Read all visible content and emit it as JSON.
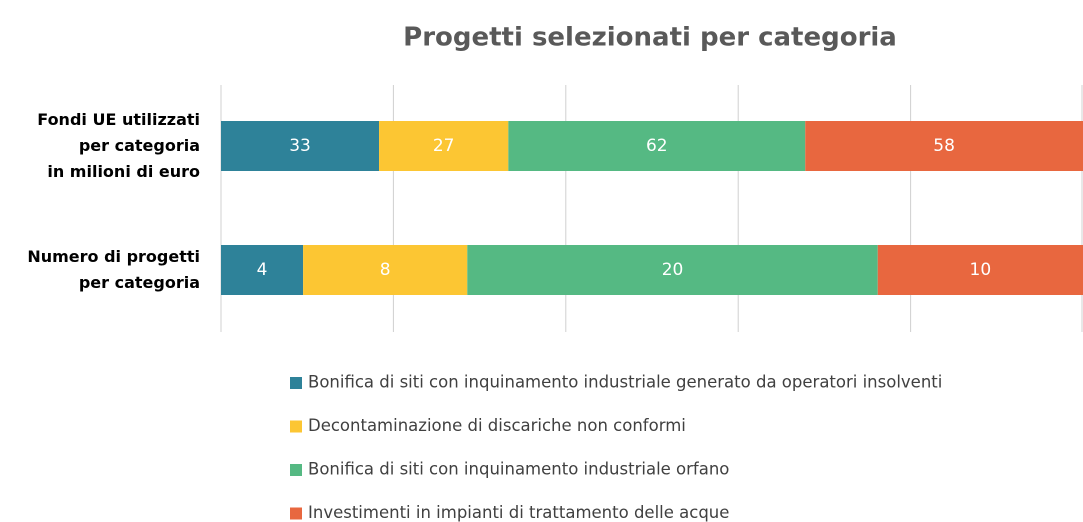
{
  "chart_data": {
    "type": "bar",
    "orientation": "horizontal",
    "stacked": "percent",
    "title": "Progetti selezionati per categoria",
    "categories": [
      "Fondi UE utilizzati\nper categoria\nin milioni di euro",
      "Numero di progetti\nper categoria"
    ],
    "series": [
      {
        "name": "Bonifica di siti con inquinamento industriale generato da operatori insolventi",
        "color": "#2e8299",
        "values": [
          33,
          4
        ]
      },
      {
        "name": "Decontaminazione di discariche non conformi",
        "color": "#fcc633",
        "values": [
          27,
          8
        ]
      },
      {
        "name": "Bonifica di siti con inquinamento industriale orfano",
        "color": "#55b983",
        "values": [
          62,
          20
        ]
      },
      {
        "name": "Investimenti in impianti di trattamento delle acque",
        "color": "#e8673f",
        "values": [
          58,
          10
        ]
      }
    ],
    "xlim": [
      0,
      100
    ],
    "xticks": [
      0,
      20,
      40,
      60,
      80,
      100
    ],
    "grid": true
  }
}
